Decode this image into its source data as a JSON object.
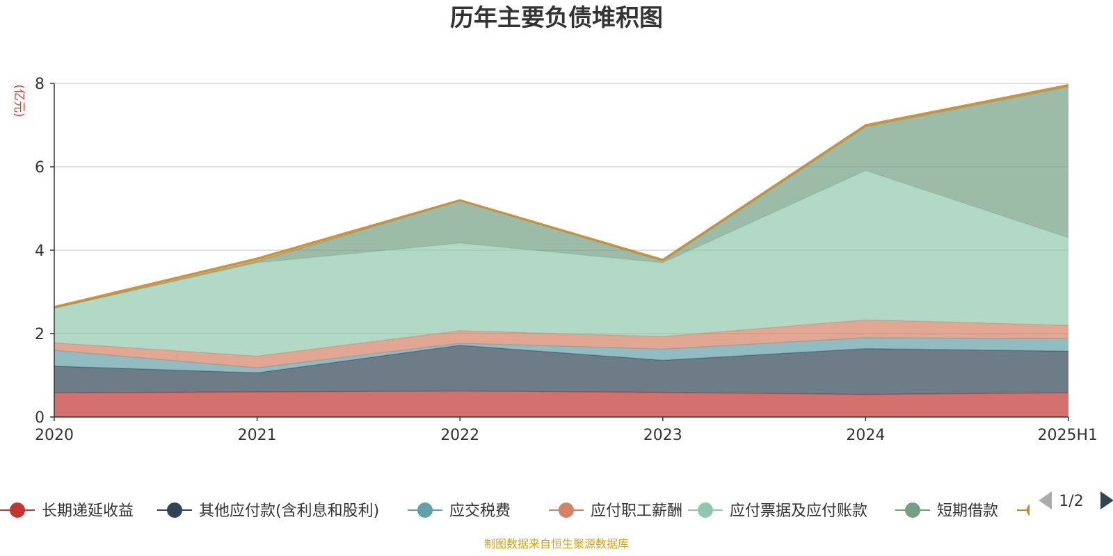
{
  "chart_data": {
    "type": "area",
    "title": "历年主要负债堆积图",
    "ylabel": "(亿元)",
    "categories": [
      "2020",
      "2021",
      "2022",
      "2023",
      "2024",
      "2025H1"
    ],
    "ylim": [
      0,
      8
    ],
    "yticks": [
      "0",
      "2",
      "4",
      "6",
      "8"
    ],
    "grid": true,
    "stacked": true,
    "series": [
      {
        "name": "长期递延收益",
        "color": "#c23531",
        "values": [
          0.58,
          0.6,
          0.62,
          0.59,
          0.54,
          0.58
        ]
      },
      {
        "name": "其他应付款(含利息和股利)",
        "color": "#2f4554",
        "values": [
          0.64,
          0.46,
          1.1,
          0.77,
          1.1,
          1.0
        ]
      },
      {
        "name": "应交税费",
        "color": "#61a0a8",
        "values": [
          0.38,
          0.12,
          0.05,
          0.27,
          0.26,
          0.3
        ]
      },
      {
        "name": "应付职工薪酬",
        "color": "#d48265",
        "values": [
          0.18,
          0.28,
          0.3,
          0.3,
          0.43,
          0.32
        ]
      },
      {
        "name": "应付票据及应付账款",
        "color": "#91c7ae",
        "values": [
          0.83,
          2.24,
          2.1,
          1.77,
          3.58,
          2.1
        ]
      },
      {
        "name": "短期借款",
        "color": "#749f83",
        "values": [
          0.0,
          0.03,
          1.02,
          0.04,
          1.05,
          3.62
        ]
      },
      {
        "name": "",
        "color": "#ca8622",
        "values": [
          0.03,
          0.07,
          0.01,
          0.03,
          0.04,
          0.04
        ]
      }
    ],
    "legend_position": "bottom",
    "legend_page": "1/2",
    "source": "制图数据来自恒生聚源数据库"
  }
}
